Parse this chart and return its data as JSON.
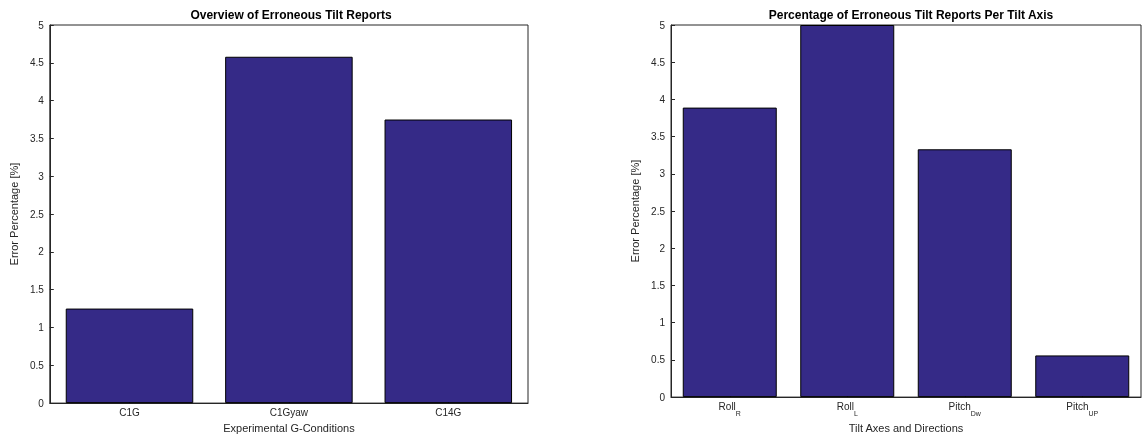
{
  "chart_data": [
    {
      "type": "bar",
      "title": "Overview of Erroneous Tilt Reports",
      "xlabel": "Experimental G-Conditions",
      "ylabel": "Error Percentage [%]",
      "categories": [
        "C1G",
        "C1Gyaw",
        "C14G"
      ],
      "values": [
        1.25,
        4.58,
        3.75
      ],
      "color": "#352a87",
      "ylim": [
        0,
        5
      ],
      "yticks": [
        0,
        0.5,
        1,
        1.5,
        2,
        2.5,
        3,
        3.5,
        4,
        4.5,
        5
      ]
    },
    {
      "type": "bar",
      "title": "Percentage of Erroneous Tilt Reports Per Tilt Axis",
      "xlabel": "Tilt Axes and Directions",
      "ylabel": "Error Percentage [%]",
      "categories": [
        "Roll$_{R}$",
        "Roll$_{L}$",
        "Pitch$_{Dw}$",
        "Pitch$_{UP}$"
      ],
      "values": [
        3.89,
        5,
        3.33,
        0.56
      ],
      "color": "#352a87",
      "ylim": [
        0,
        5
      ],
      "yticks": [
        0,
        0.5,
        1,
        1.5,
        2,
        2.5,
        3,
        3.5,
        4,
        4.5,
        5
      ]
    }
  ]
}
